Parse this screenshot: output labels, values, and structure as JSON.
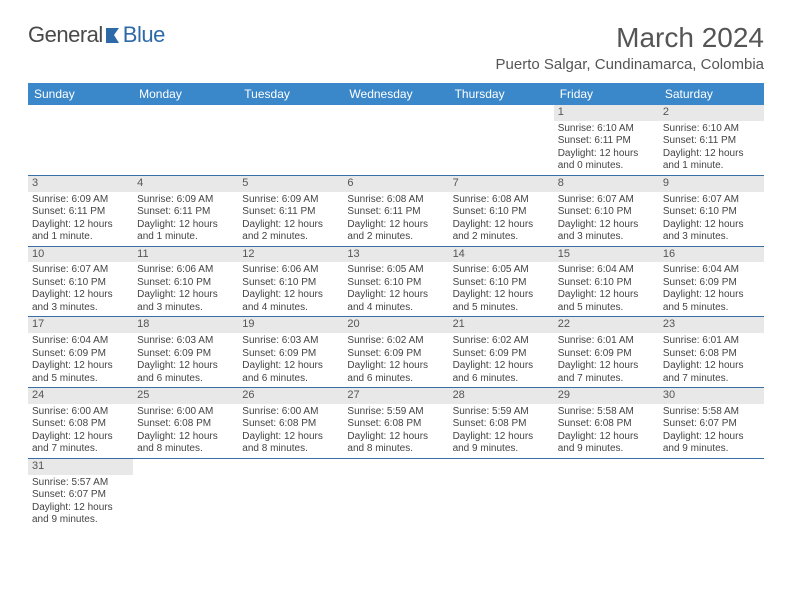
{
  "logo": {
    "text1": "General",
    "text2": "Blue"
  },
  "header": {
    "month_title": "March 2024",
    "location": "Puerto Salgar, Cundinamarca, Colombia"
  },
  "style": {
    "header_bg": "#3a87c9",
    "header_fg": "#ffffff",
    "week_border": "#3a6fa5",
    "daynum_bg": "#e8e8e8",
    "body_fg": "#444444",
    "title_fg": "#555555",
    "font_family": "Arial, Helvetica, sans-serif",
    "month_title_fontsize": 28,
    "location_fontsize": 15,
    "dayhead_fontsize": 12,
    "cell_fontsize": 10
  },
  "day_headers": [
    "Sunday",
    "Monday",
    "Tuesday",
    "Wednesday",
    "Thursday",
    "Friday",
    "Saturday"
  ],
  "weeks": [
    [
      {
        "n": "",
        "sr": "",
        "ss": "",
        "dl": ""
      },
      {
        "n": "",
        "sr": "",
        "ss": "",
        "dl": ""
      },
      {
        "n": "",
        "sr": "",
        "ss": "",
        "dl": ""
      },
      {
        "n": "",
        "sr": "",
        "ss": "",
        "dl": ""
      },
      {
        "n": "",
        "sr": "",
        "ss": "",
        "dl": ""
      },
      {
        "n": "1",
        "sr": "Sunrise: 6:10 AM",
        "ss": "Sunset: 6:11 PM",
        "dl": "Daylight: 12 hours and 0 minutes."
      },
      {
        "n": "2",
        "sr": "Sunrise: 6:10 AM",
        "ss": "Sunset: 6:11 PM",
        "dl": "Daylight: 12 hours and 1 minute."
      }
    ],
    [
      {
        "n": "3",
        "sr": "Sunrise: 6:09 AM",
        "ss": "Sunset: 6:11 PM",
        "dl": "Daylight: 12 hours and 1 minute."
      },
      {
        "n": "4",
        "sr": "Sunrise: 6:09 AM",
        "ss": "Sunset: 6:11 PM",
        "dl": "Daylight: 12 hours and 1 minute."
      },
      {
        "n": "5",
        "sr": "Sunrise: 6:09 AM",
        "ss": "Sunset: 6:11 PM",
        "dl": "Daylight: 12 hours and 2 minutes."
      },
      {
        "n": "6",
        "sr": "Sunrise: 6:08 AM",
        "ss": "Sunset: 6:11 PM",
        "dl": "Daylight: 12 hours and 2 minutes."
      },
      {
        "n": "7",
        "sr": "Sunrise: 6:08 AM",
        "ss": "Sunset: 6:10 PM",
        "dl": "Daylight: 12 hours and 2 minutes."
      },
      {
        "n": "8",
        "sr": "Sunrise: 6:07 AM",
        "ss": "Sunset: 6:10 PM",
        "dl": "Daylight: 12 hours and 3 minutes."
      },
      {
        "n": "9",
        "sr": "Sunrise: 6:07 AM",
        "ss": "Sunset: 6:10 PM",
        "dl": "Daylight: 12 hours and 3 minutes."
      }
    ],
    [
      {
        "n": "10",
        "sr": "Sunrise: 6:07 AM",
        "ss": "Sunset: 6:10 PM",
        "dl": "Daylight: 12 hours and 3 minutes."
      },
      {
        "n": "11",
        "sr": "Sunrise: 6:06 AM",
        "ss": "Sunset: 6:10 PM",
        "dl": "Daylight: 12 hours and 3 minutes."
      },
      {
        "n": "12",
        "sr": "Sunrise: 6:06 AM",
        "ss": "Sunset: 6:10 PM",
        "dl": "Daylight: 12 hours and 4 minutes."
      },
      {
        "n": "13",
        "sr": "Sunrise: 6:05 AM",
        "ss": "Sunset: 6:10 PM",
        "dl": "Daylight: 12 hours and 4 minutes."
      },
      {
        "n": "14",
        "sr": "Sunrise: 6:05 AM",
        "ss": "Sunset: 6:10 PM",
        "dl": "Daylight: 12 hours and 5 minutes."
      },
      {
        "n": "15",
        "sr": "Sunrise: 6:04 AM",
        "ss": "Sunset: 6:10 PM",
        "dl": "Daylight: 12 hours and 5 minutes."
      },
      {
        "n": "16",
        "sr": "Sunrise: 6:04 AM",
        "ss": "Sunset: 6:09 PM",
        "dl": "Daylight: 12 hours and 5 minutes."
      }
    ],
    [
      {
        "n": "17",
        "sr": "Sunrise: 6:04 AM",
        "ss": "Sunset: 6:09 PM",
        "dl": "Daylight: 12 hours and 5 minutes."
      },
      {
        "n": "18",
        "sr": "Sunrise: 6:03 AM",
        "ss": "Sunset: 6:09 PM",
        "dl": "Daylight: 12 hours and 6 minutes."
      },
      {
        "n": "19",
        "sr": "Sunrise: 6:03 AM",
        "ss": "Sunset: 6:09 PM",
        "dl": "Daylight: 12 hours and 6 minutes."
      },
      {
        "n": "20",
        "sr": "Sunrise: 6:02 AM",
        "ss": "Sunset: 6:09 PM",
        "dl": "Daylight: 12 hours and 6 minutes."
      },
      {
        "n": "21",
        "sr": "Sunrise: 6:02 AM",
        "ss": "Sunset: 6:09 PM",
        "dl": "Daylight: 12 hours and 6 minutes."
      },
      {
        "n": "22",
        "sr": "Sunrise: 6:01 AM",
        "ss": "Sunset: 6:09 PM",
        "dl": "Daylight: 12 hours and 7 minutes."
      },
      {
        "n": "23",
        "sr": "Sunrise: 6:01 AM",
        "ss": "Sunset: 6:08 PM",
        "dl": "Daylight: 12 hours and 7 minutes."
      }
    ],
    [
      {
        "n": "24",
        "sr": "Sunrise: 6:00 AM",
        "ss": "Sunset: 6:08 PM",
        "dl": "Daylight: 12 hours and 7 minutes."
      },
      {
        "n": "25",
        "sr": "Sunrise: 6:00 AM",
        "ss": "Sunset: 6:08 PM",
        "dl": "Daylight: 12 hours and 8 minutes."
      },
      {
        "n": "26",
        "sr": "Sunrise: 6:00 AM",
        "ss": "Sunset: 6:08 PM",
        "dl": "Daylight: 12 hours and 8 minutes."
      },
      {
        "n": "27",
        "sr": "Sunrise: 5:59 AM",
        "ss": "Sunset: 6:08 PM",
        "dl": "Daylight: 12 hours and 8 minutes."
      },
      {
        "n": "28",
        "sr": "Sunrise: 5:59 AM",
        "ss": "Sunset: 6:08 PM",
        "dl": "Daylight: 12 hours and 9 minutes."
      },
      {
        "n": "29",
        "sr": "Sunrise: 5:58 AM",
        "ss": "Sunset: 6:08 PM",
        "dl": "Daylight: 12 hours and 9 minutes."
      },
      {
        "n": "30",
        "sr": "Sunrise: 5:58 AM",
        "ss": "Sunset: 6:07 PM",
        "dl": "Daylight: 12 hours and 9 minutes."
      }
    ],
    [
      {
        "n": "31",
        "sr": "Sunrise: 5:57 AM",
        "ss": "Sunset: 6:07 PM",
        "dl": "Daylight: 12 hours and 9 minutes."
      },
      {
        "n": "",
        "sr": "",
        "ss": "",
        "dl": ""
      },
      {
        "n": "",
        "sr": "",
        "ss": "",
        "dl": ""
      },
      {
        "n": "",
        "sr": "",
        "ss": "",
        "dl": ""
      },
      {
        "n": "",
        "sr": "",
        "ss": "",
        "dl": ""
      },
      {
        "n": "",
        "sr": "",
        "ss": "",
        "dl": ""
      },
      {
        "n": "",
        "sr": "",
        "ss": "",
        "dl": ""
      }
    ]
  ]
}
